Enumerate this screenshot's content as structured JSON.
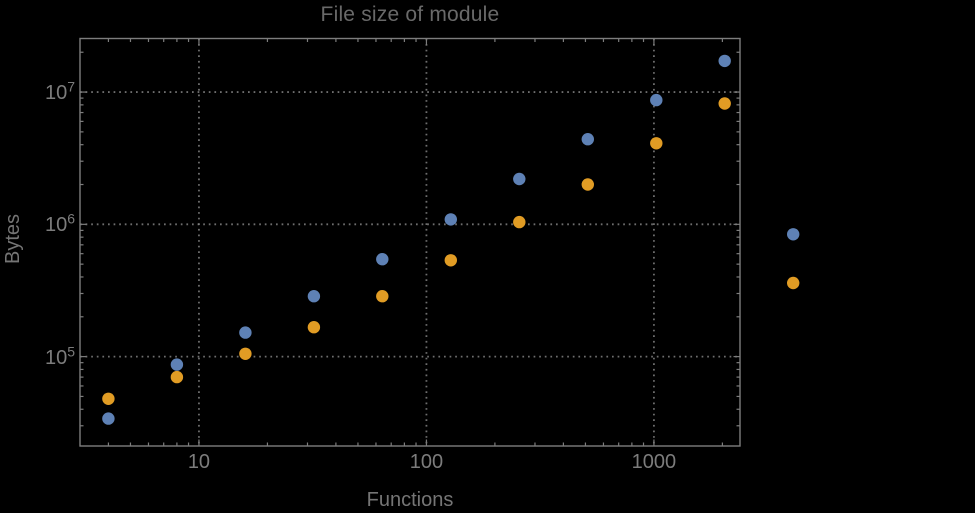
{
  "chart_data": {
    "type": "scatter",
    "title": "File size of module",
    "xlabel": "Functions",
    "ylabel": "Bytes",
    "x_scale": "log",
    "y_scale": "log",
    "grid": "dotted",
    "legend": "none",
    "xlim": [
      3.0,
      2390
    ],
    "ylim": [
      21100,
      25400000
    ],
    "x": [
      4,
      8,
      16,
      32,
      64,
      128,
      256,
      512,
      1024,
      2048,
      4096
    ],
    "series": [
      {
        "name": "series-blue",
        "color": "#5e81b5",
        "values": [
          34000,
          87000,
          152000,
          286000,
          545000,
          1090000,
          2200000,
          4400000,
          8700000,
          17200000,
          840000
        ]
      },
      {
        "name": "series-orange",
        "color": "#e19c24",
        "values": [
          48000,
          70000,
          105000,
          167000,
          286000,
          535000,
          1040000,
          2000000,
          4100000,
          8200000,
          360000
        ]
      }
    ],
    "x_ticks": [
      {
        "value": 10,
        "label": "10"
      },
      {
        "value": 100,
        "label": "100"
      },
      {
        "value": 1000,
        "label": "1000"
      }
    ],
    "y_ticks": [
      {
        "value": 100000,
        "base": "10",
        "exp": "5"
      },
      {
        "value": 1000000,
        "base": "10",
        "exp": "6"
      },
      {
        "value": 10000000,
        "base": "10",
        "exp": "7"
      }
    ],
    "colors": {
      "background": "#000000",
      "frame": "#7d7d7d",
      "grid": "#8a8a8a",
      "title": "#696969",
      "tick_label": "#7c7c7c",
      "axis_label": "#757575"
    },
    "marker": {
      "shape": "circle",
      "radius_px": 6.2
    }
  }
}
